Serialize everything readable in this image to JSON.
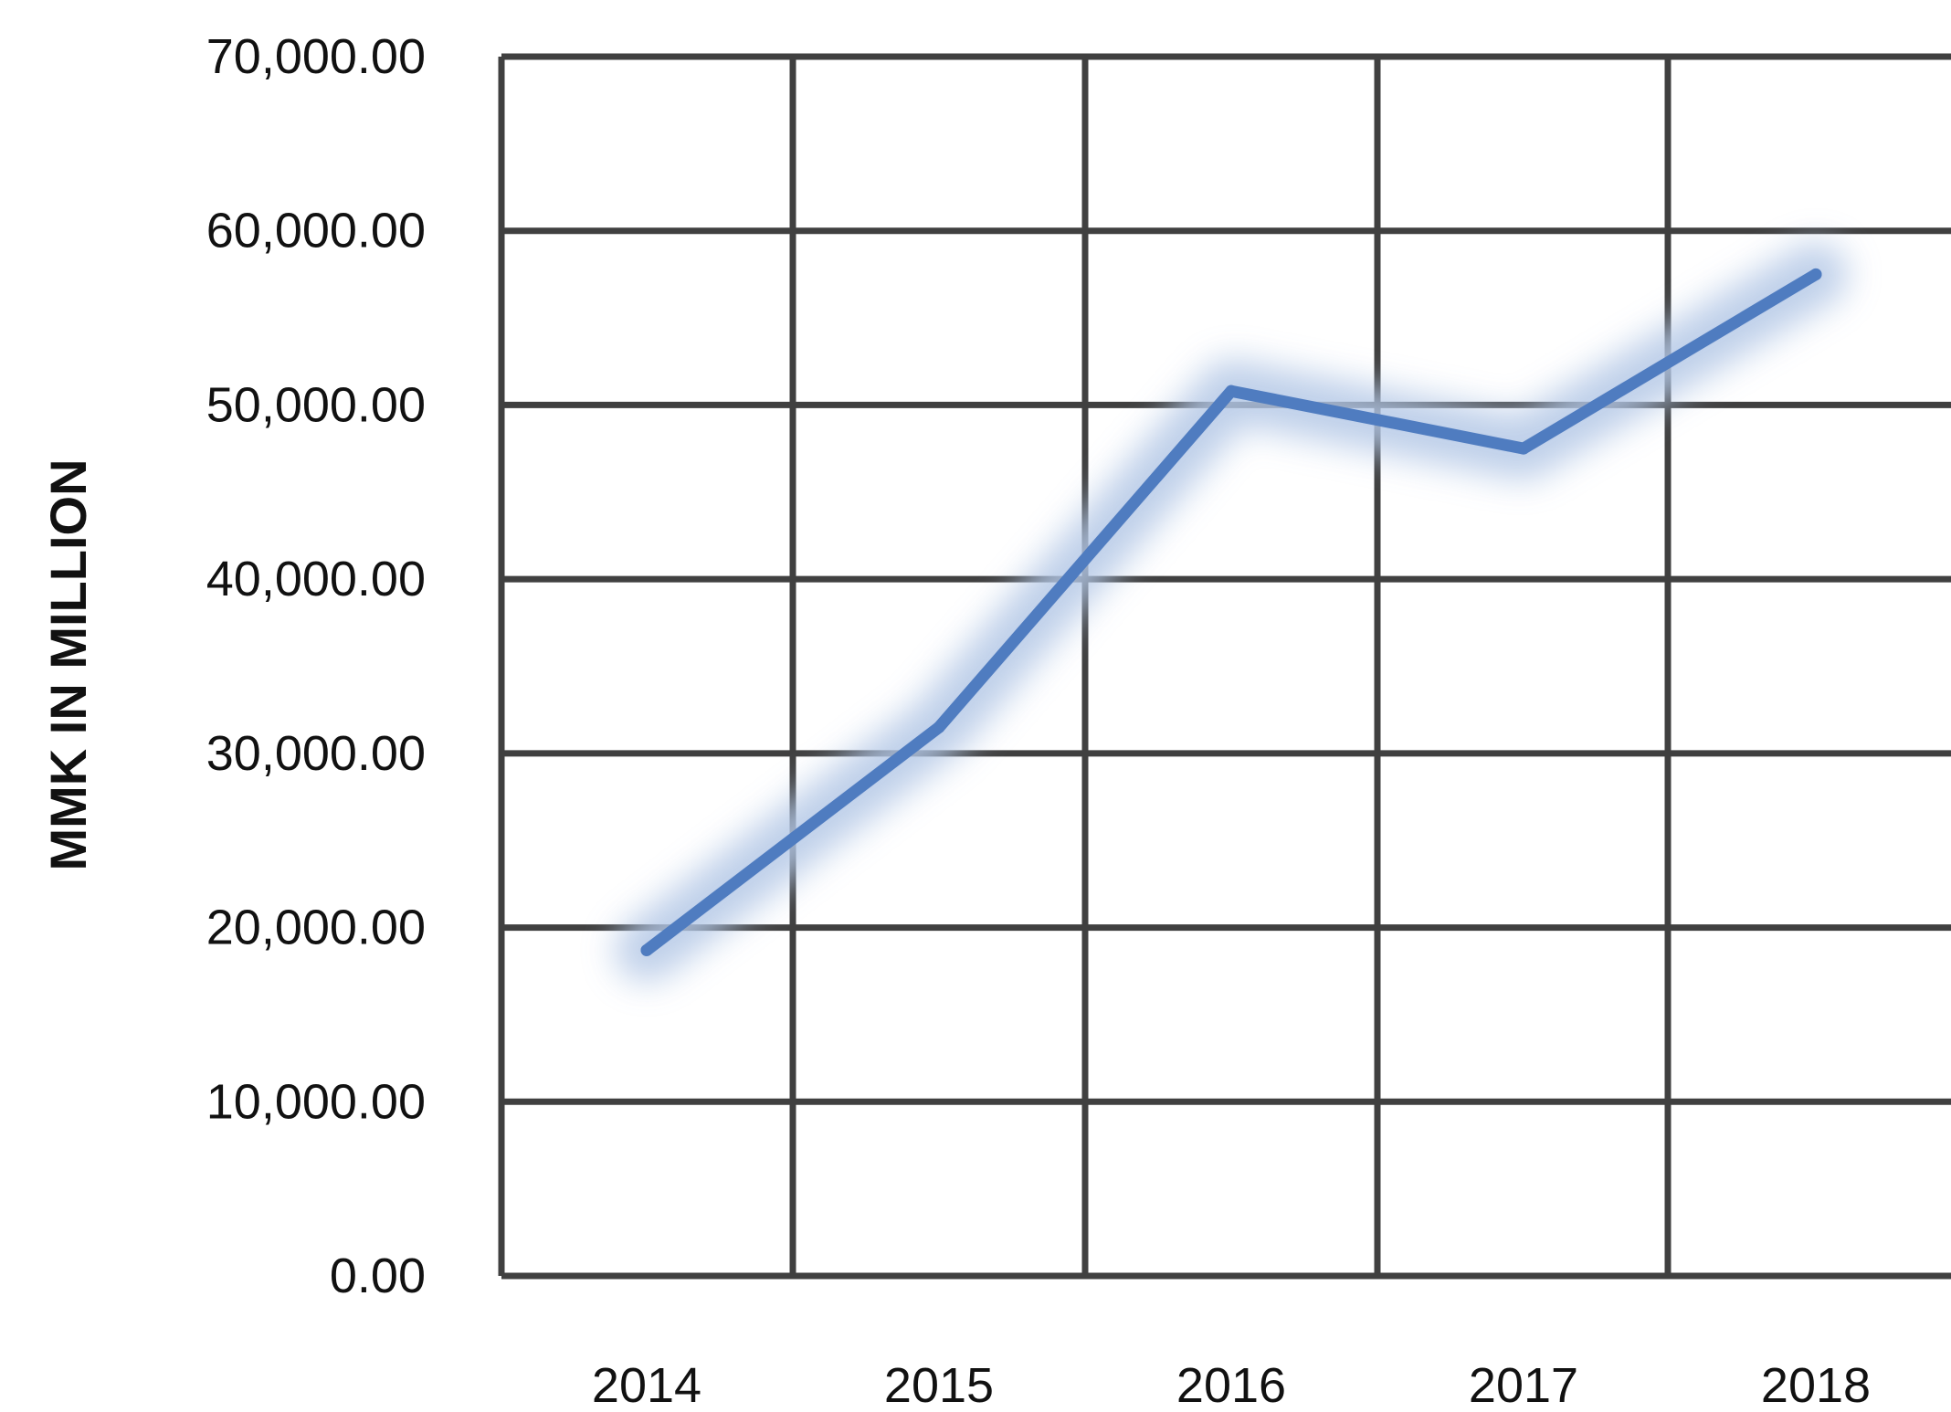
{
  "chart_data": {
    "type": "line",
    "categories": [
      "2014",
      "2015",
      "2016",
      "2017",
      "2018"
    ],
    "series": [
      {
        "values": [
          18700,
          31500,
          50800,
          47500,
          57500
        ]
      }
    ],
    "title": "",
    "xlabel": "",
    "ylabel": "MMK IN MILLION",
    "ylim": [
      0,
      70000
    ],
    "yticks": [
      0,
      10000,
      20000,
      30000,
      40000,
      50000,
      60000,
      70000
    ],
    "ytick_labels": [
      "0.00",
      "10,000.00",
      "20,000.00",
      "30,000.00",
      "40,000.00",
      "50,000.00",
      "60,000.00",
      "70,000.00"
    ],
    "grid": true,
    "legend": "none",
    "colors": {
      "line": "#4f7cc0",
      "glow": "#b4c8e6",
      "grid": "#404040",
      "text": "#111111"
    }
  }
}
